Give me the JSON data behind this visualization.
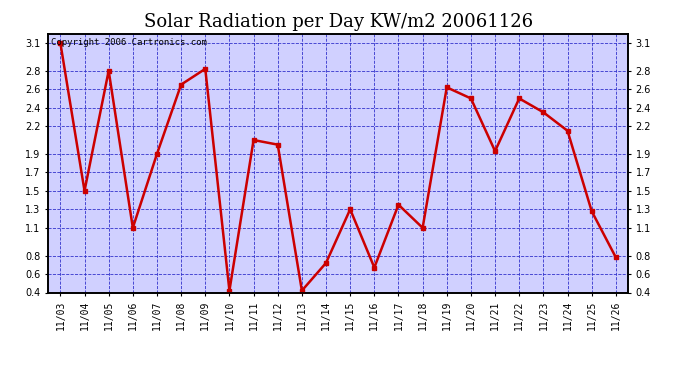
{
  "title": "Solar Radiation per Day KW/m2 20061126",
  "copyright_text": "Copyright 2006 Cartronics.com",
  "x_labels": [
    "11/03",
    "11/04",
    "11/05",
    "11/06",
    "11/07",
    "11/08",
    "11/09",
    "11/10",
    "11/11",
    "11/12",
    "11/13",
    "11/14",
    "11/15",
    "11/16",
    "11/17",
    "11/18",
    "11/19",
    "11/20",
    "11/21",
    "11/22",
    "11/23",
    "11/24",
    "11/25",
    "11/26"
  ],
  "y_values": [
    3.1,
    1.5,
    2.8,
    1.1,
    1.9,
    2.65,
    2.82,
    0.42,
    2.05,
    2.0,
    0.42,
    0.72,
    1.3,
    0.67,
    1.35,
    1.1,
    2.62,
    2.5,
    1.93,
    2.5,
    2.35,
    2.15,
    1.28,
    0.78
  ],
  "line_color": "#cc0000",
  "marker_color": "#cc0000",
  "bg_color": "#ffffff",
  "plot_bg_color": "#d0d0ff",
  "grid_color": "#3333cc",
  "border_color": "#000000",
  "title_color": "#000000",
  "ylim_min": 0.4,
  "ylim_max": 3.2,
  "yticks": [
    0.4,
    0.6,
    0.8,
    1.1,
    1.3,
    1.5,
    1.7,
    1.9,
    2.2,
    2.4,
    2.6,
    2.8,
    3.1
  ],
  "title_fontsize": 13,
  "copyright_fontsize": 6.5,
  "tick_fontsize": 7,
  "line_width": 1.8,
  "marker_size": 3.5
}
